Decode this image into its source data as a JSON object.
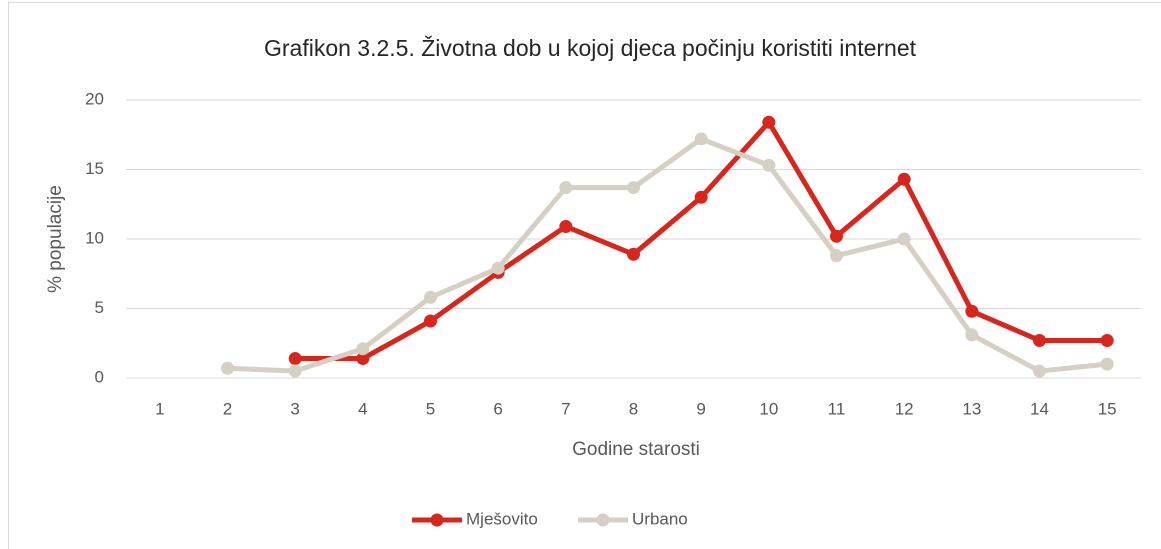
{
  "chart_data": {
    "type": "line",
    "title": "Grafikon 3.2.5. Životna dob u kojoj djeca počinju koristiti internet",
    "x_label": "Godine starosti",
    "y_label": "% populacije",
    "categories": [
      "1",
      "2",
      "3",
      "4",
      "5",
      "6",
      "7",
      "8",
      "9",
      "10",
      "11",
      "12",
      "13",
      "14",
      "15"
    ],
    "series": [
      {
        "name": "Mješovito",
        "color": "#d9261c",
        "values": [
          null,
          null,
          1.4,
          1.4,
          4.1,
          7.6,
          10.9,
          8.9,
          13,
          18.4,
          10.2,
          14.3,
          4.8,
          2.7,
          2.7
        ]
      },
      {
        "name": "Urbano",
        "color": "#d5cfc4",
        "values": [
          null,
          0.7,
          0.5,
          2.1,
          5.8,
          7.9,
          13.7,
          13.7,
          17.2,
          15.3,
          8.8,
          10,
          3.1,
          0.5,
          1.0
        ]
      }
    ],
    "ylim": [
      0,
      20
    ],
    "yticks": [
      0,
      5,
      10,
      15,
      20
    ],
    "grid": true,
    "legend": "bottom"
  }
}
